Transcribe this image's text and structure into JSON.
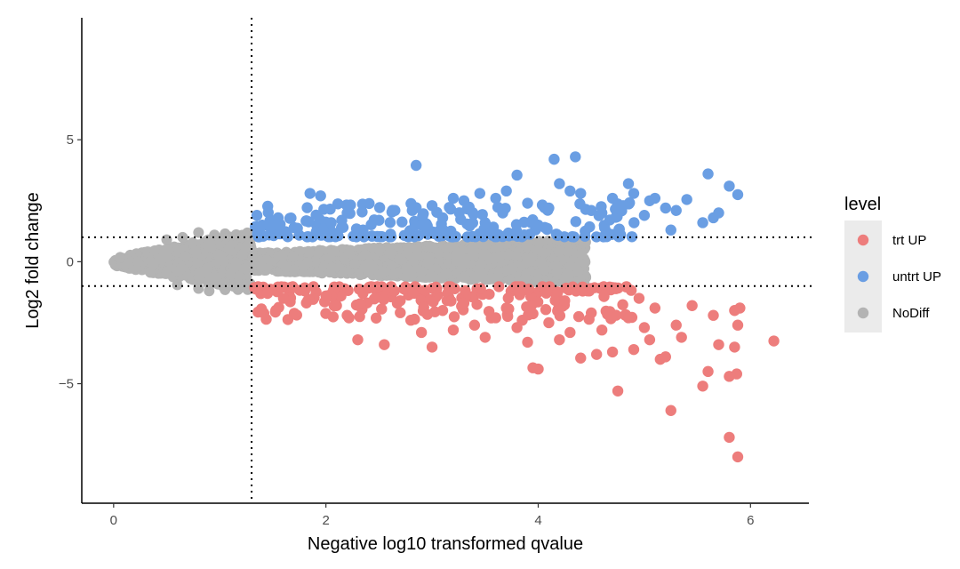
{
  "chart_data": {
    "type": "scatter",
    "title": "",
    "xlabel": "Negative log10 transformed qvalue",
    "ylabel": "Log2 fold change",
    "xlim": [
      -0.3,
      6.55
    ],
    "ylim": [
      -9.9,
      10.0
    ],
    "x_ticks": [
      0,
      2,
      4,
      6
    ],
    "y_ticks": [
      -5,
      0,
      5
    ],
    "x_tick_labels": [
      "0",
      "2",
      "4",
      "6"
    ],
    "y_tick_labels": [
      "−5",
      "0",
      "5"
    ],
    "thresholds": {
      "vline_x": 1.3,
      "hline_y": [
        1,
        -1
      ]
    },
    "grid": false,
    "legend": {
      "title": "level",
      "position": "right"
    },
    "colors": {
      "trt UP": "#ED7D7C",
      "untrt UP": "#6A9EE3",
      "NoDiff": "#B3B3B3"
    },
    "series": [
      {
        "name": "trt UP",
        "description": "fold change below -1 and qvalue above threshold; additional dense cloud not enumerated",
        "points": [
          [
            1.35,
            -1.1
          ],
          [
            1.45,
            -1.3
          ],
          [
            1.6,
            -1.5
          ],
          [
            1.8,
            -1.2
          ],
          [
            2.0,
            -1.4
          ],
          [
            2.1,
            -1.8
          ],
          [
            2.2,
            -2.2
          ],
          [
            2.3,
            -3.2
          ],
          [
            2.55,
            -3.4
          ],
          [
            2.7,
            -1.6
          ],
          [
            2.8,
            -2.4
          ],
          [
            2.9,
            -2.9
          ],
          [
            3.0,
            -3.5
          ],
          [
            3.1,
            -2.0
          ],
          [
            3.2,
            -2.8
          ],
          [
            3.3,
            -1.7
          ],
          [
            3.4,
            -2.6
          ],
          [
            3.5,
            -3.1
          ],
          [
            3.6,
            -2.3
          ],
          [
            3.7,
            -1.9
          ],
          [
            3.8,
            -2.7
          ],
          [
            3.9,
            -3.3
          ],
          [
            3.95,
            -4.35
          ],
          [
            4.0,
            -4.4
          ],
          [
            4.1,
            -2.5
          ],
          [
            4.2,
            -3.2
          ],
          [
            4.25,
            -1.6
          ],
          [
            4.3,
            -2.9
          ],
          [
            4.4,
            -3.95
          ],
          [
            4.5,
            -2.1
          ],
          [
            4.55,
            -3.8
          ],
          [
            4.6,
            -2.8
          ],
          [
            4.7,
            -3.7
          ],
          [
            4.75,
            -5.3
          ],
          [
            4.85,
            -2.3
          ],
          [
            4.9,
            -3.6
          ],
          [
            4.95,
            -1.5
          ],
          [
            5.0,
            -2.7
          ],
          [
            5.05,
            -3.2
          ],
          [
            5.1,
            -1.9
          ],
          [
            5.15,
            -4.0
          ],
          [
            5.2,
            -3.9
          ],
          [
            5.25,
            -6.1
          ],
          [
            5.3,
            -2.6
          ],
          [
            5.35,
            -3.1
          ],
          [
            5.45,
            -1.8
          ],
          [
            5.55,
            -5.1
          ],
          [
            5.6,
            -4.5
          ],
          [
            5.65,
            -2.2
          ],
          [
            5.7,
            -3.4
          ],
          [
            5.8,
            -7.2
          ],
          [
            5.8,
            -4.7
          ],
          [
            5.85,
            -3.5
          ],
          [
            5.85,
            -2.0
          ],
          [
            5.87,
            -4.6
          ],
          [
            5.88,
            -8.0
          ],
          [
            5.88,
            -2.6
          ],
          [
            5.9,
            -1.9
          ],
          [
            6.22,
            -3.25
          ]
        ]
      },
      {
        "name": "untrt UP",
        "description": "fold change above 1 and qvalue above threshold; additional dense cloud not enumerated",
        "points": [
          [
            1.35,
            1.9
          ],
          [
            1.4,
            1.5
          ],
          [
            1.55,
            1.8
          ],
          [
            1.7,
            1.4
          ],
          [
            1.85,
            2.8
          ],
          [
            1.95,
            2.7
          ],
          [
            2.05,
            1.6
          ],
          [
            2.2,
            2.0
          ],
          [
            2.35,
            1.3
          ],
          [
            2.5,
            1.7
          ],
          [
            2.65,
            2.1
          ],
          [
            2.85,
            3.95
          ],
          [
            2.9,
            1.5
          ],
          [
            3.0,
            2.3
          ],
          [
            3.1,
            1.8
          ],
          [
            3.2,
            2.6
          ],
          [
            3.3,
            2.5
          ],
          [
            3.45,
            2.8
          ],
          [
            3.5,
            1.6
          ],
          [
            3.6,
            2.6
          ],
          [
            3.7,
            2.9
          ],
          [
            3.8,
            3.55
          ],
          [
            3.9,
            2.4
          ],
          [
            4.0,
            1.5
          ],
          [
            4.1,
            2.2
          ],
          [
            4.15,
            4.2
          ],
          [
            4.2,
            3.2
          ],
          [
            4.3,
            2.9
          ],
          [
            4.35,
            4.3
          ],
          [
            4.4,
            2.8
          ],
          [
            4.5,
            2.1
          ],
          [
            4.6,
            2.0
          ],
          [
            4.7,
            2.6
          ],
          [
            4.8,
            2.3
          ],
          [
            4.85,
            3.2
          ],
          [
            4.9,
            2.8
          ],
          [
            5.0,
            1.9
          ],
          [
            5.05,
            2.5
          ],
          [
            5.1,
            2.6
          ],
          [
            5.2,
            2.2
          ],
          [
            5.25,
            1.3
          ],
          [
            5.3,
            2.1
          ],
          [
            5.4,
            2.55
          ],
          [
            5.55,
            1.6
          ],
          [
            5.6,
            3.6
          ],
          [
            5.65,
            1.8
          ],
          [
            5.7,
            2.0
          ],
          [
            5.8,
            3.1
          ],
          [
            5.88,
            2.75
          ]
        ]
      },
      {
        "name": "NoDiff",
        "description": "dense grey cloud forming a horizontal cone from x=0 to ~4.4 within roughly -1.3 < y < 1.3; shape approximated",
        "points": [
          [
            0.5,
            0.9
          ],
          [
            0.65,
            1.0
          ],
          [
            0.8,
            1.2
          ],
          [
            0.95,
            1.1
          ],
          [
            1.05,
            1.15
          ],
          [
            1.2,
            1.0
          ],
          [
            0.6,
            -0.95
          ],
          [
            0.8,
            -1.1
          ],
          [
            0.9,
            -1.2
          ],
          [
            1.05,
            -1.15
          ],
          [
            1.2,
            -1.05
          ],
          [
            2.5,
            0.5
          ],
          [
            3.0,
            0.6
          ],
          [
            3.5,
            0.7
          ],
          [
            4.0,
            0.8
          ],
          [
            4.3,
            0.95
          ],
          [
            2.5,
            -0.55
          ],
          [
            3.0,
            -0.6
          ],
          [
            3.5,
            -0.7
          ],
          [
            4.0,
            -0.85
          ],
          [
            4.3,
            -0.95
          ]
        ]
      }
    ]
  }
}
